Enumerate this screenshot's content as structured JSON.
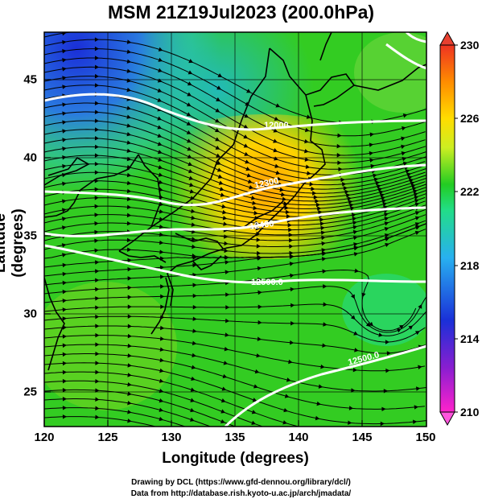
{
  "title": "MSM 21Z19Jul2023 (200.0hPa)",
  "xlabel": "Longitude (degrees)",
  "ylabel": "Latitude  (degrees)",
  "x_ticks": [
    "120",
    "125",
    "130",
    "135",
    "140",
    "145",
    "150"
  ],
  "y_ticks": [
    "45",
    "40",
    "35",
    "30",
    "25"
  ],
  "colorbar": {
    "labels": [
      "230",
      "226",
      "222",
      "218",
      "214",
      "210"
    ]
  },
  "contour_labels": [
    "12000",
    "12300",
    "12400",
    "12500.0",
    "12500.0"
  ],
  "credits": [
    "Drawing by DCL (https://www.gfd-dennou.org/library/dcl/)",
    "Data from http://database.rish.kyoto-u.ac.jp/arch/jmadata/"
  ],
  "chart_data": {
    "type": "heatmap",
    "title": "MSM 21Z19Jul2023 (200.0hPa)",
    "xlabel": "Longitude (degrees)",
    "ylabel": "Latitude  (degrees)",
    "xlim": [
      120,
      150
    ],
    "ylim": [
      22.4,
      47.6
    ],
    "colorbar_range": [
      210,
      230
    ],
    "colorbar_ticks": [
      230,
      226,
      222,
      218,
      214,
      210
    ],
    "contour_labels": [
      "12000",
      "12300",
      "12400",
      "12500.0",
      "12500.0"
    ],
    "colors": {
      "high": "#ff8800",
      "mid": "#22cc22",
      "low": "#1c2dd6",
      "contour": "#ffffff"
    }
  }
}
